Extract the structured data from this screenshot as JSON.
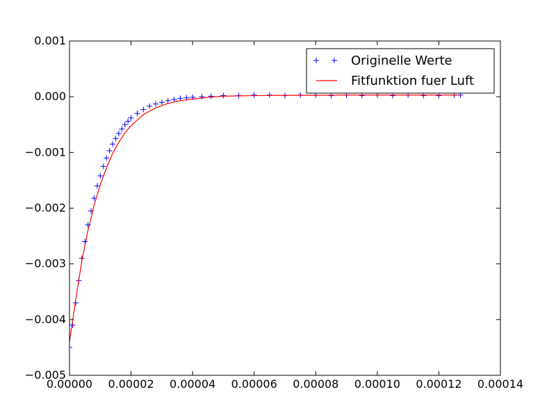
{
  "chart_data": {
    "type": "scatter",
    "title": "",
    "xlabel": "",
    "ylabel": "",
    "xlim": [
      0,
      0.00014
    ],
    "ylim": [
      -0.005,
      0.001
    ],
    "xticks": [
      0,
      2e-05,
      4e-05,
      6e-05,
      8e-05,
      0.0001,
      0.00012,
      0.00014
    ],
    "yticks": [
      -0.005,
      -0.004,
      -0.003,
      -0.002,
      -0.001,
      0,
      0.001
    ],
    "xtick_labels": [
      "0.00000",
      "0.00002",
      "0.00004",
      "0.00006",
      "0.00008",
      "0.00010",
      "0.00012",
      "0.00014"
    ],
    "ytick_labels": [
      "−0.005",
      "−0.004",
      "−0.003",
      "−0.002",
      "−0.001",
      "0.000",
      "0.001"
    ],
    "grid": false,
    "legend_position": "top-right",
    "legend": [
      "Originelle Werte",
      "Fitfunktion fuer Luft"
    ],
    "series": [
      {
        "name": "Originelle Werte",
        "kind": "scatter",
        "marker": "+",
        "color": "#0000ff",
        "x": [
          0,
          1e-06,
          2e-06,
          3e-06,
          4e-06,
          5e-06,
          6e-06,
          7e-06,
          8e-06,
          9e-06,
          1e-05,
          1.1e-05,
          1.2e-05,
          1.3e-05,
          1.4e-05,
          1.5e-05,
          1.6e-05,
          1.7e-05,
          1.8e-05,
          1.9e-05,
          2e-05,
          2.2e-05,
          2.4e-05,
          2.6e-05,
          2.8e-05,
          3e-05,
          3.2e-05,
          3.4e-05,
          3.6e-05,
          3.8e-05,
          4e-05,
          4.3e-05,
          4.6e-05,
          5e-05,
          5.5e-05,
          6e-05,
          6.5e-05,
          7e-05,
          7.5e-05,
          8e-05,
          8.5e-05,
          9e-05,
          9.5e-05,
          0.0001,
          0.000105,
          0.00011,
          0.000115,
          0.00012,
          0.000125,
          0.000127
        ],
        "y": [
          -0.0045,
          -0.0041,
          -0.0037,
          -0.0033,
          -0.0029,
          -0.0026,
          -0.0023,
          -0.00205,
          -0.00182,
          -0.0016,
          -0.00142,
          -0.00125,
          -0.0011,
          -0.00097,
          -0.00085,
          -0.00075,
          -0.00066,
          -0.00058,
          -0.0005,
          -0.00044,
          -0.00038,
          -0.0003,
          -0.00023,
          -0.00017,
          -0.00013,
          -0.0001,
          -7e-05,
          -5e-05,
          -3e-05,
          -2e-05,
          -1e-05,
          0,
          1e-05,
          2e-05,
          2e-05,
          3e-05,
          3e-05,
          2e-05,
          3e-05,
          3e-05,
          2e-05,
          3e-05,
          2e-05,
          3e-05,
          2e-05,
          3e-05,
          2e-05,
          2e-05,
          3e-05,
          3e-05
        ]
      },
      {
        "name": "Fitfunktion fuer Luft",
        "kind": "line",
        "color": "#ff0000",
        "x": [
          0,
          2e-06,
          4e-06,
          6e-06,
          8e-06,
          1e-05,
          1.2e-05,
          1.4e-05,
          1.6e-05,
          1.8e-05,
          2e-05,
          2.4e-05,
          2.8e-05,
          3.2e-05,
          3.6e-05,
          4e-05,
          4.5e-05,
          5e-05,
          6e-05,
          7e-05,
          8e-05,
          9e-05,
          0.0001,
          0.00011,
          0.00012,
          0.000127
        ],
        "y": [
          -0.0044,
          -0.00365,
          -0.00295,
          -0.0024,
          -0.00195,
          -0.00158,
          -0.00128,
          -0.00102,
          -0.00082,
          -0.00065,
          -0.00052,
          -0.00032,
          -0.0002,
          -0.00012,
          -7e-05,
          -4e-05,
          -1e-05,
          1e-05,
          2e-05,
          2.5e-05,
          2.5e-05,
          3e-05,
          3e-05,
          3e-05,
          3e-05,
          3e-05
        ]
      }
    ]
  }
}
